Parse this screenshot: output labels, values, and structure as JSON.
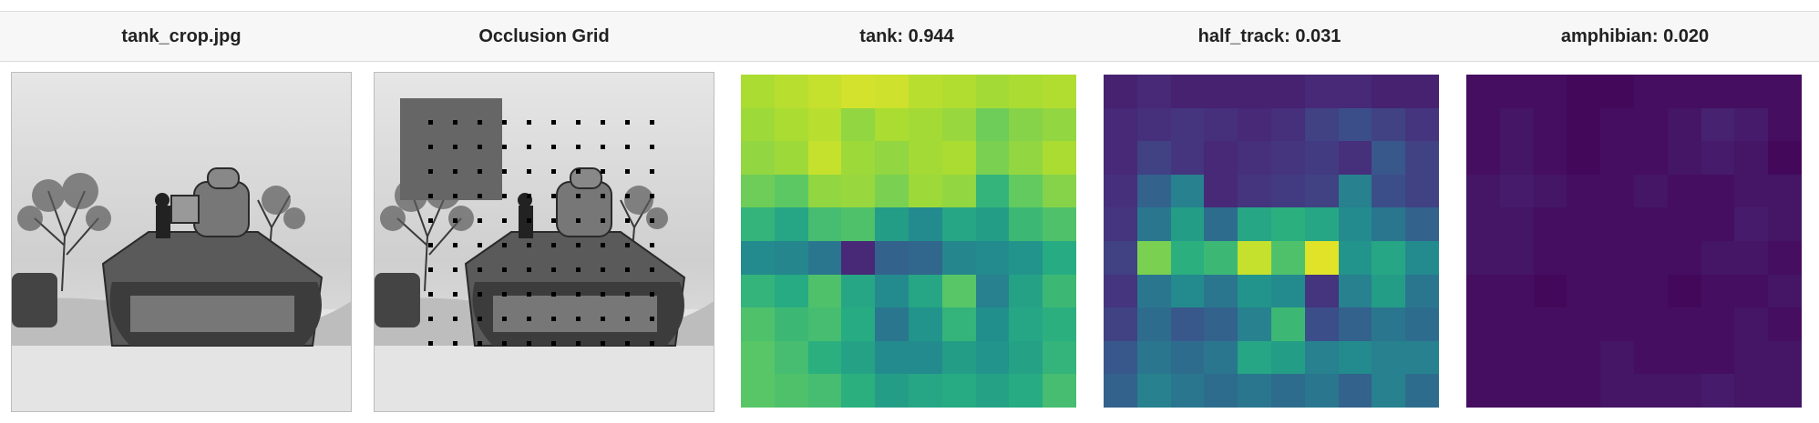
{
  "columns": [
    {
      "id": "original",
      "title": "tank_crop.jpg"
    },
    {
      "id": "occlusion",
      "title": "Occlusion Grid"
    },
    {
      "id": "heat-tank",
      "title": "tank: 0.944"
    },
    {
      "id": "heat-half-track",
      "title": "half_track: 0.031"
    },
    {
      "id": "heat-amphibian",
      "title": "amphibian: 0.020"
    }
  ],
  "heatmaps": {
    "tank": [
      [
        0.88,
        0.9,
        0.92,
        0.94,
        0.93,
        0.9,
        0.89,
        0.87,
        0.88,
        0.89
      ],
      [
        0.86,
        0.88,
        0.9,
        0.84,
        0.88,
        0.87,
        0.85,
        0.78,
        0.82,
        0.84
      ],
      [
        0.84,
        0.86,
        0.92,
        0.86,
        0.84,
        0.87,
        0.88,
        0.8,
        0.84,
        0.88
      ],
      [
        0.78,
        0.75,
        0.84,
        0.85,
        0.8,
        0.86,
        0.84,
        0.66,
        0.76,
        0.82
      ],
      [
        0.66,
        0.6,
        0.7,
        0.72,
        0.56,
        0.48,
        0.6,
        0.56,
        0.68,
        0.72
      ],
      [
        0.48,
        0.46,
        0.4,
        0.12,
        0.32,
        0.34,
        0.46,
        0.48,
        0.52,
        0.62
      ],
      [
        0.66,
        0.62,
        0.72,
        0.6,
        0.48,
        0.6,
        0.74,
        0.44,
        0.58,
        0.68
      ],
      [
        0.72,
        0.68,
        0.7,
        0.62,
        0.4,
        0.52,
        0.66,
        0.5,
        0.6,
        0.64
      ],
      [
        0.74,
        0.7,
        0.64,
        0.58,
        0.48,
        0.48,
        0.56,
        0.52,
        0.58,
        0.66
      ],
      [
        0.74,
        0.72,
        0.7,
        0.64,
        0.56,
        0.6,
        0.62,
        0.58,
        0.62,
        0.7
      ]
    ],
    "half_track": [
      [
        0.05,
        0.06,
        0.05,
        0.05,
        0.05,
        0.05,
        0.06,
        0.06,
        0.05,
        0.05
      ],
      [
        0.06,
        0.07,
        0.08,
        0.07,
        0.06,
        0.07,
        0.1,
        0.12,
        0.1,
        0.08
      ],
      [
        0.06,
        0.1,
        0.08,
        0.06,
        0.07,
        0.08,
        0.09,
        0.07,
        0.14,
        0.1
      ],
      [
        0.07,
        0.16,
        0.22,
        0.06,
        0.08,
        0.09,
        0.1,
        0.22,
        0.12,
        0.1
      ],
      [
        0.08,
        0.2,
        0.28,
        0.18,
        0.3,
        0.32,
        0.3,
        0.24,
        0.2,
        0.16
      ],
      [
        0.1,
        0.4,
        0.32,
        0.34,
        0.46,
        0.36,
        0.48,
        0.26,
        0.3,
        0.24
      ],
      [
        0.08,
        0.2,
        0.24,
        0.2,
        0.26,
        0.24,
        0.08,
        0.22,
        0.28,
        0.2
      ],
      [
        0.1,
        0.18,
        0.14,
        0.16,
        0.22,
        0.34,
        0.12,
        0.16,
        0.2,
        0.18
      ],
      [
        0.14,
        0.2,
        0.18,
        0.2,
        0.3,
        0.28,
        0.22,
        0.24,
        0.22,
        0.22
      ],
      [
        0.16,
        0.22,
        0.2,
        0.18,
        0.2,
        0.18,
        0.2,
        0.16,
        0.22,
        0.18
      ]
    ],
    "amphibian": [
      [
        0.02,
        0.02,
        0.02,
        0.01,
        0.01,
        0.02,
        0.02,
        0.02,
        0.02,
        0.02
      ],
      [
        0.02,
        0.03,
        0.02,
        0.01,
        0.02,
        0.02,
        0.03,
        0.05,
        0.04,
        0.02
      ],
      [
        0.02,
        0.03,
        0.02,
        0.01,
        0.02,
        0.02,
        0.03,
        0.04,
        0.03,
        0.01
      ],
      [
        0.03,
        0.04,
        0.03,
        0.02,
        0.02,
        0.03,
        0.02,
        0.02,
        0.03,
        0.03
      ],
      [
        0.03,
        0.03,
        0.02,
        0.02,
        0.02,
        0.02,
        0.02,
        0.02,
        0.04,
        0.03
      ],
      [
        0.03,
        0.03,
        0.02,
        0.02,
        0.02,
        0.02,
        0.02,
        0.03,
        0.03,
        0.02
      ],
      [
        0.02,
        0.02,
        0.01,
        0.02,
        0.02,
        0.02,
        0.01,
        0.02,
        0.02,
        0.03
      ],
      [
        0.02,
        0.02,
        0.02,
        0.02,
        0.02,
        0.02,
        0.02,
        0.02,
        0.03,
        0.02
      ],
      [
        0.02,
        0.02,
        0.02,
        0.02,
        0.03,
        0.02,
        0.02,
        0.02,
        0.03,
        0.03
      ],
      [
        0.02,
        0.02,
        0.02,
        0.02,
        0.03,
        0.03,
        0.03,
        0.04,
        0.03,
        0.03
      ]
    ]
  },
  "occlusion": {
    "patch_cell": [
      0,
      0
    ],
    "patch_span_cells": 4,
    "patch_color": "#666666"
  },
  "colormap": "viridis"
}
